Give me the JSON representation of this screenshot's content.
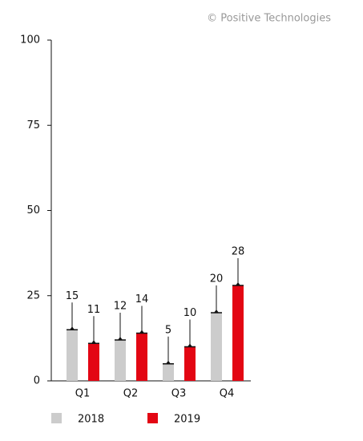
{
  "chart_data": {
    "type": "bar",
    "source": "© Positive Technologies",
    "categories": [
      "Q1",
      "Q2",
      "Q3",
      "Q4"
    ],
    "series": [
      {
        "name": "2018",
        "color": "#cccccc",
        "values": [
          15,
          12,
          5,
          20
        ]
      },
      {
        "name": "2019",
        "color": "#e30613",
        "values": [
          11,
          14,
          10,
          28
        ]
      }
    ],
    "ylim": [
      0,
      100
    ],
    "yticks": [
      0,
      25,
      50,
      75,
      100
    ],
    "grid": false
  }
}
